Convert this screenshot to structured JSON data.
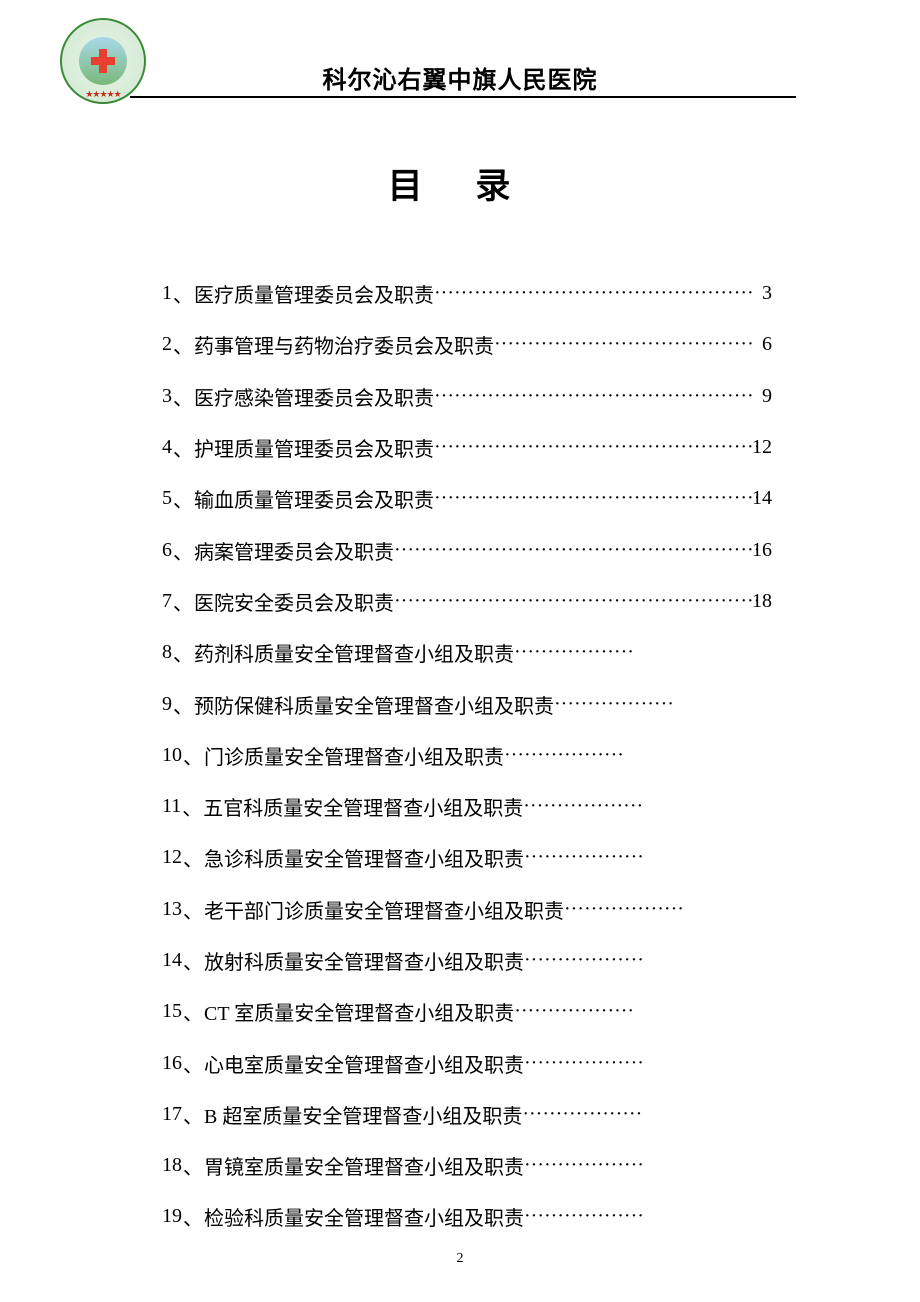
{
  "header": {
    "hospital_name": "科尔沁右翼中旗人民医院"
  },
  "title": "目 录",
  "toc": {
    "separator": "、",
    "dot_char": "·",
    "font_size": 20,
    "line_height": 51.3,
    "entries": [
      {
        "num": "1",
        "title": "医疗质量管理委员会及职责",
        "page": "3",
        "page_pad": " "
      },
      {
        "num": "2",
        "title": "药事管理与药物治疗委员会及职责",
        "page": "6",
        "page_pad": " "
      },
      {
        "num": "3",
        "title": "医疗感染管理委员会及职责",
        "page": "9",
        "page_pad": " "
      },
      {
        "num": "4",
        "title": "护理质量管理委员会及职责",
        "page": "12",
        "page_pad": ""
      },
      {
        "num": "5",
        "title": "输血质量管理委员会及职责",
        "page": "14",
        "page_pad": ""
      },
      {
        "num": "6",
        "title": "病案管理委员会及职责",
        "page": "16",
        "page_pad": ""
      },
      {
        "num": "7",
        "title": "医院安全委员会及职责",
        "page": "18",
        "page_pad": ""
      },
      {
        "num": "8",
        "title": "药剂科质量安全管理督查小组及职责",
        "page": "",
        "page_pad": ""
      },
      {
        "num": "9",
        "title": "预防保健科质量安全管理督查小组及职责",
        "page": "",
        "page_pad": ""
      },
      {
        "num": "10",
        "title": "门诊质量安全管理督查小组及职责",
        "page": "",
        "page_pad": ""
      },
      {
        "num": "11",
        "title": "五官科质量安全管理督查小组及职责",
        "page": "",
        "page_pad": ""
      },
      {
        "num": "12",
        "title": "急诊科质量安全管理督查小组及职责",
        "page": "",
        "page_pad": ""
      },
      {
        "num": "13",
        "title": "老干部门诊质量安全管理督查小组及职责",
        "page": "",
        "page_pad": ""
      },
      {
        "num": "14",
        "title": "放射科质量安全管理督查小组及职责",
        "page": "",
        "page_pad": ""
      },
      {
        "num": "15",
        "title": "CT 室质量安全管理督查小组及职责",
        "page": "",
        "page_pad": ""
      },
      {
        "num": "16",
        "title": "心电室质量安全管理督查小组及职责",
        "page": "",
        "page_pad": ""
      },
      {
        "num": "17",
        "title": "B 超室质量安全管理督查小组及职责",
        "page": "",
        "page_pad": ""
      },
      {
        "num": "18",
        "title": "胃镜室质量安全管理督查小组及职责",
        "page": "",
        "page_pad": ""
      },
      {
        "num": "19",
        "title": "检验科质量安全管理督查小组及职责",
        "page": "",
        "page_pad": ""
      }
    ]
  },
  "page_number": "2",
  "colors": {
    "text": "#000000",
    "background": "#ffffff",
    "logo_border": "#3a8a3a",
    "logo_cross": "#e84030"
  }
}
